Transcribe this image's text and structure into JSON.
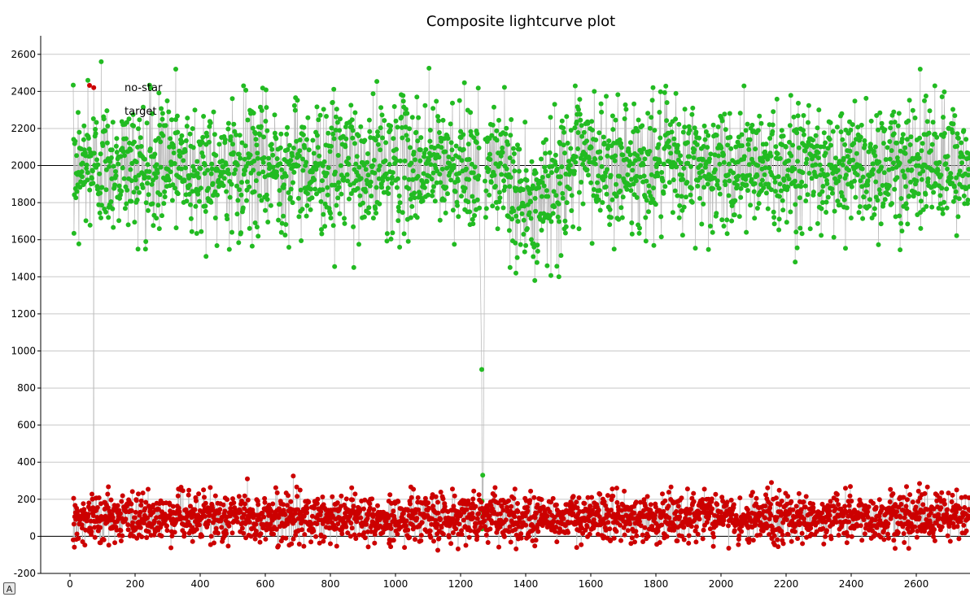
{
  "chart_data": {
    "type": "scatter",
    "title": "Composite lightcurve plot",
    "xlabel": "",
    "ylabel": "",
    "xlim": [
      -90,
      2765
    ],
    "ylim": [
      -200,
      2700
    ],
    "x_ticks": [
      0,
      200,
      400,
      600,
      800,
      1000,
      1200,
      1400,
      1600,
      1800,
      2000,
      2200,
      2400,
      2600
    ],
    "y_ticks": [
      -200,
      0,
      200,
      400,
      600,
      800,
      1000,
      1200,
      1400,
      1600,
      1800,
      2000,
      2200,
      2400,
      2600
    ],
    "reference_lines_y": [
      0,
      2000
    ],
    "grid": true,
    "legend_placement": "top-left",
    "series": [
      {
        "name": "target",
        "color": "#22bb22",
        "x_range": [
          10,
          2765
        ],
        "baseline": 2000,
        "scatter_sd": 175,
        "dip": {
          "x": [
            1330,
            1520
          ],
          "min": 1780
        },
        "event_points": [
          {
            "x": 1265,
            "y": 900
          },
          {
            "x": 1268,
            "y": 330
          },
          {
            "x": 1266,
            "y": 190
          },
          {
            "x": 1267,
            "y": 140
          },
          {
            "x": 1269,
            "y": 110
          },
          {
            "x": 1266,
            "y": 40
          }
        ],
        "sample_points": [
          {
            "x": 96,
            "y": 2560
          },
          {
            "x": 55,
            "y": 2460
          },
          {
            "x": 325,
            "y": 2520
          },
          {
            "x": 1103,
            "y": 2525
          },
          {
            "x": 2612,
            "y": 2520
          },
          {
            "x": 2657,
            "y": 2430
          },
          {
            "x": 813,
            "y": 1455
          },
          {
            "x": 872,
            "y": 1450
          },
          {
            "x": 1428,
            "y": 1380
          },
          {
            "x": 1502,
            "y": 1400
          },
          {
            "x": 2228,
            "y": 1480
          },
          {
            "x": 418,
            "y": 1510
          },
          {
            "x": 1352,
            "y": 1450
          },
          {
            "x": 1370,
            "y": 1420
          }
        ]
      },
      {
        "name": "no-star",
        "color": "#cc0000",
        "x_range": [
          10,
          2765
        ],
        "baseline": 100,
        "scatter_sd": 65,
        "sample_points": [
          {
            "x": 73,
            "y": 2420
          },
          {
            "x": 686,
            "y": 325
          },
          {
            "x": 545,
            "y": 310
          },
          {
            "x": 2155,
            "y": 290
          },
          {
            "x": 2610,
            "y": 285
          },
          {
            "x": 1130,
            "y": -75
          },
          {
            "x": 2535,
            "y": -65
          }
        ]
      }
    ]
  },
  "ui": {
    "corner_button_label": "A"
  }
}
